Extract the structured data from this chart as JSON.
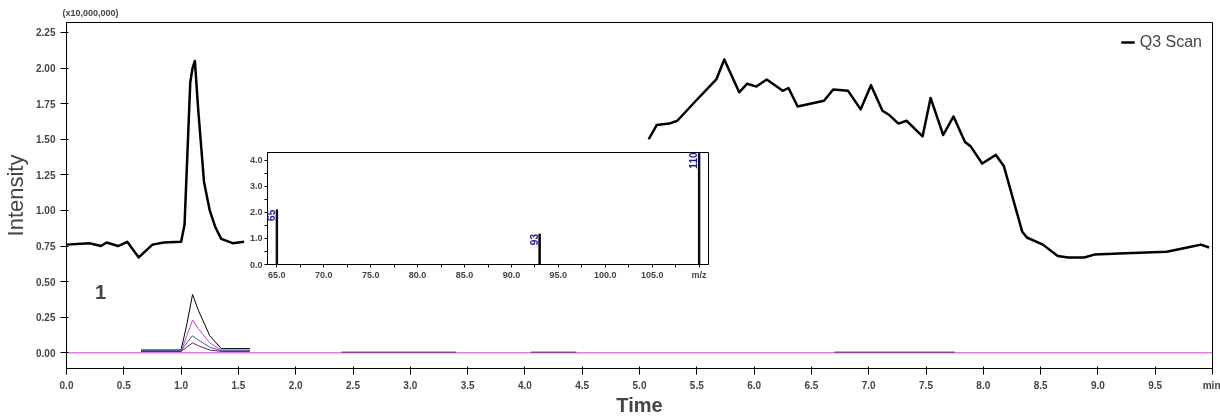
{
  "chart_data": [
    {
      "type": "line",
      "xlabel": "Time",
      "ylabel": "Intensity",
      "annotations": [
        "(x10,000,000)",
        "1"
      ],
      "xlim": [
        0,
        10
      ],
      "ylim": [
        -0.11,
        2.32
      ],
      "xticks": [
        {
          "value": 0,
          "label": "0.0"
        },
        {
          "value": 0.5,
          "label": "0.5"
        },
        {
          "value": 1,
          "label": "1.0"
        },
        {
          "value": 1.5,
          "label": "1.5"
        },
        {
          "value": 2,
          "label": "2.0"
        },
        {
          "value": 2.5,
          "label": "2.5"
        },
        {
          "value": 3,
          "label": "3.0"
        },
        {
          "value": 3.5,
          "label": "3.5"
        },
        {
          "value": 4,
          "label": "4.0"
        },
        {
          "value": 4.5,
          "label": "4.5"
        },
        {
          "value": 5,
          "label": "5.0"
        },
        {
          "value": 5.5,
          "label": "5.5"
        },
        {
          "value": 6,
          "label": "6.0"
        },
        {
          "value": 6.5,
          "label": "6.5"
        },
        {
          "value": 7,
          "label": "7.0"
        },
        {
          "value": 7.5,
          "label": "7.5"
        },
        {
          "value": 8,
          "label": "8.0"
        },
        {
          "value": 8.5,
          "label": "8.5"
        },
        {
          "value": 9,
          "label": "9.0"
        },
        {
          "value": 9.5,
          "label": "9.5"
        },
        {
          "value": 10,
          "label": "min"
        }
      ],
      "yticks": [
        {
          "value": 0,
          "label": "0.00"
        },
        {
          "value": 0.25,
          "label": "0.25"
        },
        {
          "value": 0.5,
          "label": "0.50"
        },
        {
          "value": 0.75,
          "label": "0.75"
        },
        {
          "value": 1,
          "label": "1.00"
        },
        {
          "value": 1.25,
          "label": "1.25"
        },
        {
          "value": 1.5,
          "label": "1.50"
        },
        {
          "value": 1.75,
          "label": "1.75"
        },
        {
          "value": 2,
          "label": "2.00"
        },
        {
          "value": 2.25,
          "label": "2.25"
        }
      ],
      "grid": false,
      "legend": "top right",
      "series": [
        {
          "name": "Q3 Scan",
          "color": "#000000",
          "x": [
            0.0,
            0.2,
            0.3,
            0.35,
            0.45,
            0.53,
            0.63,
            0.75,
            0.85,
            1.0,
            1.03,
            1.05,
            1.08,
            1.1,
            1.12,
            1.15,
            1.2,
            1.25,
            1.3,
            1.35,
            1.45,
            1.55,
            3.3,
            5.08,
            5.15,
            5.26,
            5.33,
            5.48,
            5.67,
            5.74,
            5.87,
            5.94,
            6.02,
            6.11,
            6.25,
            6.3,
            6.38,
            6.61,
            6.69,
            6.82,
            6.93,
            7.02,
            7.12,
            7.18,
            7.26,
            7.33,
            7.47,
            7.54,
            7.65,
            7.74,
            7.84,
            7.89,
            7.99,
            8.11,
            8.18,
            8.34,
            8.38,
            8.52,
            8.65,
            8.74,
            8.88,
            8.97,
            9.24,
            9.6,
            9.78,
            9.9,
            9.97
          ],
          "values": [
            0.76,
            0.77,
            0.75,
            0.775,
            0.75,
            0.78,
            0.67,
            0.76,
            0.775,
            0.78,
            0.9,
            1.3,
            1.9,
            2.0,
            2.05,
            1.7,
            1.2,
            1.0,
            0.88,
            0.8,
            0.77,
            0.78,
            null,
            1.5,
            1.6,
            1.61,
            1.63,
            1.76,
            1.92,
            2.06,
            1.83,
            1.89,
            1.87,
            1.92,
            1.84,
            1.86,
            1.73,
            1.77,
            1.85,
            1.84,
            1.71,
            1.88,
            1.7,
            1.67,
            1.61,
            1.63,
            1.52,
            1.79,
            1.53,
            1.66,
            1.48,
            1.45,
            1.33,
            1.39,
            1.31,
            0.85,
            0.81,
            0.76,
            0.68,
            0.67,
            0.67,
            0.69,
            0.7,
            0.71,
            0.74,
            0.76,
            0.74
          ]
        },
        {
          "color": "#000000",
          "x": [
            0.65,
            1.0,
            1.05,
            1.1,
            1.15,
            1.25,
            1.35,
            1.6
          ],
          "values": [
            0.02,
            0.02,
            0.2,
            0.41,
            0.3,
            0.12,
            0.03,
            0.03
          ]
        },
        {
          "color": "#d040d0",
          "x": [
            0.65,
            1.0,
            1.05,
            1.1,
            1.15,
            1.25,
            1.35,
            1.6
          ],
          "values": [
            0.01,
            0.01,
            0.12,
            0.23,
            0.17,
            0.07,
            0.02,
            0.02
          ]
        },
        {
          "color": "#4060a0",
          "x": [
            0.65,
            1.0,
            1.05,
            1.1,
            1.15,
            1.25,
            1.35,
            1.6
          ],
          "values": [
            0.015,
            0.015,
            0.07,
            0.12,
            0.09,
            0.04,
            0.015,
            0.015
          ]
        },
        {
          "color": "#602060",
          "x": [
            0.65,
            1.0,
            1.05,
            1.1,
            1.15,
            1.25,
            1.35,
            1.6
          ],
          "values": [
            0.01,
            0.01,
            0.04,
            0.07,
            0.05,
            0.02,
            0.01,
            0.01
          ]
        },
        {
          "color": "#d040d0",
          "x": [
            0,
            10
          ],
          "values": [
            0,
            0
          ]
        },
        {
          "color": "#602060",
          "x": [
            2.4,
            3.4,
            3.5,
            4.05,
            4.45,
            5.5,
            6.7,
            7.75
          ],
          "values": [
            0.005,
            0.005,
            null,
            0.005,
            0.005,
            null,
            0.005,
            0.005
          ]
        }
      ]
    },
    {
      "type": "bar",
      "x": [
        65,
        93,
        110
      ],
      "xlim": [
        64,
        111
      ],
      "ylim": [
        0,
        4.3
      ],
      "xticks": [
        {
          "value": 65,
          "label": "65.0"
        },
        {
          "value": 67.5,
          "label": null
        },
        {
          "value": 70,
          "label": "70.0"
        },
        {
          "value": 72.5,
          "label": null
        },
        {
          "value": 75,
          "label": "75.0"
        },
        {
          "value": 77.5,
          "label": null
        },
        {
          "value": 80,
          "label": "80.0"
        },
        {
          "value": 82.5,
          "label": null
        },
        {
          "value": 85,
          "label": "85.0"
        },
        {
          "value": 87.5,
          "label": null
        },
        {
          "value": 90,
          "label": "90.0"
        },
        {
          "value": 92.5,
          "label": null
        },
        {
          "value": 95,
          "label": "95.0"
        },
        {
          "value": 97.5,
          "label": null
        },
        {
          "value": 100,
          "label": "100.0"
        },
        {
          "value": 102.5,
          "label": null
        },
        {
          "value": 105,
          "label": "105.0"
        },
        {
          "value": 107.5,
          "label": null
        },
        {
          "value": 110,
          "label": "m/z"
        }
      ],
      "yticks": [
        {
          "value": 0,
          "label": "0.0"
        },
        {
          "value": 0.5,
          "label": null
        },
        {
          "value": 1,
          "label": "1.0"
        },
        {
          "value": 1.5,
          "label": null
        },
        {
          "value": 2,
          "label": "2.0"
        },
        {
          "value": 2.5,
          "label": null
        },
        {
          "value": 3,
          "label": "3.0"
        },
        {
          "value": 3.5,
          "label": null
        },
        {
          "value": 4,
          "label": "4.0"
        }
      ],
      "annotations": [
        {
          "text": "65",
          "x": 65,
          "y": 2.1
        },
        {
          "text": "93",
          "x": 93,
          "y": 1.17
        },
        {
          "text": "110",
          "x": 110,
          "y": 4.3
        }
      ],
      "series": [
        {
          "color": "#000000",
          "values": [
            2.1,
            1.17,
            4.3
          ]
        }
      ]
    }
  ]
}
